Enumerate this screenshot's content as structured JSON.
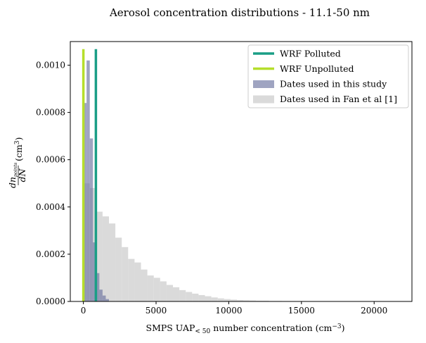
{
  "chart_data": {
    "type": "bar",
    "title": "Aerosol concentration distributions - 11.1-50 nm",
    "xlabel_parts": {
      "pre": "SMPS UAP",
      "sub": "< 50",
      "mid": " number concentration (cm",
      "sup": "−3",
      "post": ")"
    },
    "ylabel_parts": {
      "frac_num": "dn",
      "frac_num_sub": "points",
      "frac_den": "dN",
      "unit_pre": "(cm",
      "unit_sup": "3",
      "unit_post": ")"
    },
    "xlim": [
      -900,
      22600
    ],
    "ylim": [
      0,
      0.0011
    ],
    "x_ticks": [
      0,
      5000,
      10000,
      15000,
      20000
    ],
    "x_tick_labels": [
      "0",
      "5000",
      "10000",
      "15000",
      "20000"
    ],
    "y_ticks": [
      0,
      0.0002,
      0.0004,
      0.0006,
      0.0008,
      0.001
    ],
    "y_tick_labels": [
      "0.0000",
      "0.0002",
      "0.0004",
      "0.0006",
      "0.0008",
      "0.0010"
    ],
    "series": [
      {
        "name": "Dates used in Fan et al [1]",
        "kind": "hist",
        "color": "#d3d3d3",
        "bin_start": 0,
        "bin_width": 440,
        "values": [
          0.0005,
          0.00048,
          0.00038,
          0.00036,
          0.00033,
          0.00027,
          0.00023,
          0.00018,
          0.000165,
          0.000135,
          0.00011,
          0.0001,
          8.5e-05,
          7e-05,
          6e-05,
          4.8e-05,
          4e-05,
          3.3e-05,
          2.7e-05,
          2.2e-05,
          1.7e-05,
          1.3e-05,
          1e-05,
          8e-06,
          6e-06,
          5e-06,
          4e-06,
          3e-06,
          3e-06,
          2e-06,
          2e-06,
          1e-06,
          1e-06,
          1e-06,
          1e-06,
          8e-07,
          6e-07,
          5e-07,
          4e-07,
          4e-07,
          3e-07,
          3e-07,
          2e-07,
          2e-07,
          2e-07,
          2e-07,
          1e-07,
          1e-07,
          1e-07
        ]
      },
      {
        "name": "Dates used in this study",
        "kind": "hist",
        "color": "#6b73a0",
        "bin_start": 0,
        "bin_width": 220,
        "values": [
          0.00084,
          0.00102,
          0.00069,
          0.00025,
          0.00012,
          5e-05,
          2.5e-05,
          1e-05
        ]
      },
      {
        "name": "WRF Polluted",
        "kind": "vline",
        "color": "#1a9e86",
        "x": 860,
        "y_top": 0.001068
      },
      {
        "name": "WRF Unpolluted",
        "kind": "vline",
        "color": "#b5de2b",
        "x": 0,
        "y_top": 0.001068
      }
    ],
    "legend": {
      "placement": "top-right",
      "order": [
        "WRF Polluted",
        "WRF Unpolluted",
        "Dates used in this study",
        "Dates used in Fan et al [1]"
      ]
    }
  }
}
